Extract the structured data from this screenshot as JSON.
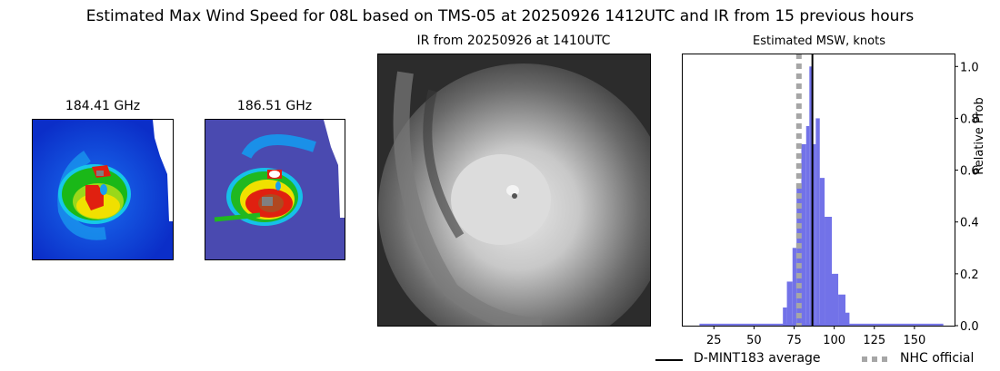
{
  "figure": {
    "suptitle": "Estimated Max Wind Speed for 08L based on TMS-05 at 20250926 1412UTC and IR from 15 previous hours"
  },
  "panels": {
    "mw1": {
      "title": "184.41 GHz"
    },
    "mw2": {
      "title": "186.51 GHz"
    },
    "ir": {
      "title": "IR from 20250926 at 1410UTC"
    }
  },
  "chart_data": {
    "type": "bar",
    "title": "Estimated MSW, knots",
    "xlabel": "",
    "ylabel": "Relative Prob",
    "xlim": [
      5,
      175
    ],
    "ylim": [
      0,
      1.05
    ],
    "xticks": [
      25,
      50,
      75,
      100,
      125,
      150
    ],
    "yticks": [
      0.0,
      0.2,
      0.4,
      0.6,
      0.8,
      1.0
    ],
    "ytick_labels": [
      "0.0",
      "0.2",
      "0.4",
      "0.6",
      "0.8",
      "1.0"
    ],
    "yaxis_side": "right",
    "grid": false,
    "bar_color": "#7272e8",
    "bins": {
      "edges": [
        68,
        70.5,
        74,
        76.5,
        79.5,
        82.5,
        84.5,
        86.5,
        88.5,
        91,
        94,
        98.5,
        102.5,
        107,
        109.5
      ],
      "values": [
        0.07,
        0.17,
        0.3,
        0.53,
        0.7,
        0.77,
        1.0,
        0.7,
        0.8,
        0.57,
        0.42,
        0.2,
        0.12,
        0.05
      ]
    },
    "baseline_tail": {
      "from": 16,
      "to": 168,
      "value": 0.004
    },
    "lines": [
      {
        "name": "D-MINT183 average",
        "x": 86.4,
        "style": "solid",
        "color": "#000000"
      },
      {
        "name": "NHC official",
        "x": 78,
        "style": "dotted",
        "color": "#a6a6a6"
      }
    ],
    "legend": {
      "position": "below",
      "entries": [
        "D-MINT183 average",
        "NHC official"
      ]
    }
  }
}
